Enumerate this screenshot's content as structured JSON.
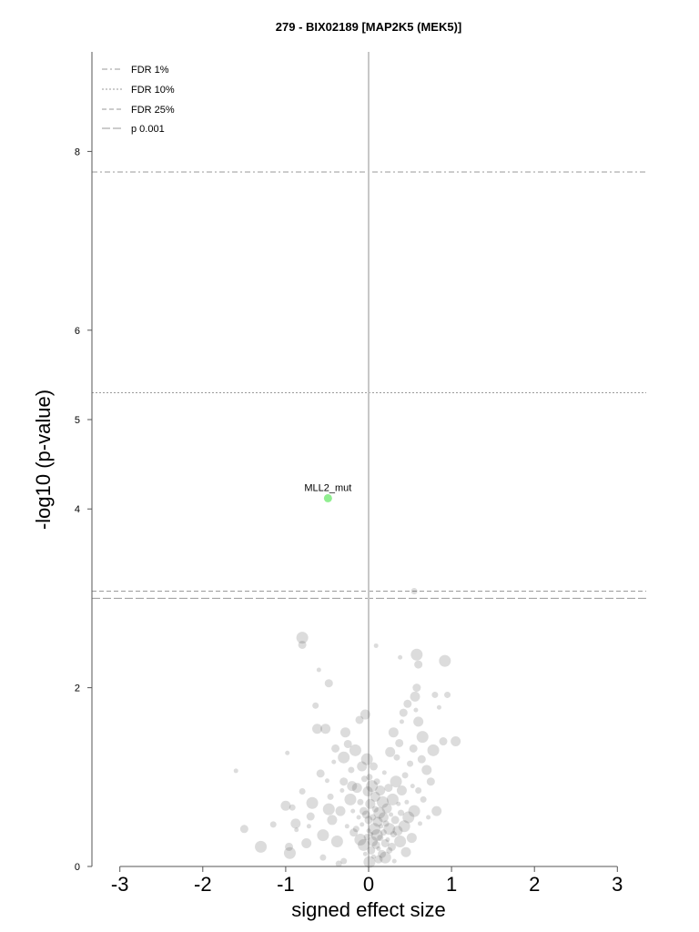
{
  "chart_data": {
    "type": "scatter",
    "title": "279 - BIX02189 [MAP2K5 (MEK5)]",
    "xlabel": "signed effect size",
    "ylabel": "-log10 (p-value)",
    "xlim": [
      -3.3,
      3.3
    ],
    "ylim": [
      0,
      9.1
    ],
    "x_ticks": [
      "-3",
      "-2",
      "-1",
      "0",
      "1",
      "2",
      "3"
    ],
    "y_ticks": [
      "0",
      "2",
      "4",
      "5",
      "6",
      "8"
    ],
    "grid": false,
    "legend_position": "top-left",
    "thresholds": [
      {
        "name": "FDR 1%",
        "y": 7.77,
        "style": "dash-dot"
      },
      {
        "name": "FDR 10%",
        "y": 5.3,
        "style": "dotted"
      },
      {
        "name": "FDR 25%",
        "y": 3.08,
        "style": "dashed"
      },
      {
        "name": "p 0.001",
        "y": 3.0,
        "style": "long-dashed"
      }
    ],
    "highlighted": [
      {
        "label": "MLL2_mut",
        "x": -0.49,
        "y": 4.12,
        "color": "#90ee90"
      }
    ],
    "background_points": [
      [
        -1.6,
        1.07
      ],
      [
        -1.5,
        0.42
      ],
      [
        -1.3,
        0.22
      ],
      [
        -1.15,
        0.47
      ],
      [
        -1.0,
        0.68
      ],
      [
        -0.98,
        1.27
      ],
      [
        -0.96,
        0.22
      ],
      [
        -0.95,
        0.15
      ],
      [
        -0.92,
        0.66
      ],
      [
        -0.88,
        0.48
      ],
      [
        -0.87,
        0.41
      ],
      [
        -0.8,
        2.48
      ],
      [
        -0.8,
        2.56
      ],
      [
        -0.8,
        0.84
      ],
      [
        -0.75,
        0.26
      ],
      [
        -0.72,
        0.45
      ],
      [
        -0.7,
        0.56
      ],
      [
        -0.68,
        0.71
      ],
      [
        -0.64,
        1.8
      ],
      [
        -0.62,
        1.54
      ],
      [
        -0.6,
        2.2
      ],
      [
        -0.58,
        1.04
      ],
      [
        -0.55,
        0.35
      ],
      [
        -0.55,
        0.1
      ],
      [
        -0.52,
        1.54
      ],
      [
        -0.5,
        0.96
      ],
      [
        -0.48,
        2.05
      ],
      [
        -0.48,
        0.64
      ],
      [
        -0.46,
        0.78
      ],
      [
        -0.44,
        0.52
      ],
      [
        -0.42,
        1.17
      ],
      [
        -0.4,
        1.32
      ],
      [
        -0.38,
        0.28
      ],
      [
        -0.36,
        0.03
      ],
      [
        -0.34,
        0.62
      ],
      [
        -0.32,
        0.85
      ],
      [
        -0.3,
        0.95
      ],
      [
        -0.3,
        1.22
      ],
      [
        -0.3,
        0.06
      ],
      [
        -0.28,
        1.5
      ],
      [
        -0.26,
        0.45
      ],
      [
        -0.25,
        1.37
      ],
      [
        -0.22,
        0.75
      ],
      [
        -0.21,
        1.08
      ],
      [
        -0.2,
        0.9
      ],
      [
        -0.19,
        0.62
      ],
      [
        -0.18,
        0.38
      ],
      [
        -0.16,
        1.3
      ],
      [
        -0.15,
        0.42
      ],
      [
        -0.14,
        0.88
      ],
      [
        -0.12,
        0.55
      ],
      [
        -0.11,
        1.64
      ],
      [
        -0.1,
        0.3
      ],
      [
        -0.1,
        0.72
      ],
      [
        -0.08,
        1.12
      ],
      [
        -0.08,
        0.47
      ],
      [
        -0.06,
        0.62
      ],
      [
        -0.06,
        0.24
      ],
      [
        -0.05,
        0.98
      ],
      [
        -0.04,
        1.7
      ],
      [
        -0.04,
        0.14
      ],
      [
        -0.03,
        0.58
      ],
      [
        -0.02,
        1.2
      ],
      [
        -0.02,
        0.33
      ],
      [
        -0.01,
        0.84
      ],
      [
        0.0,
        0.4
      ],
      [
        0.0,
        0.52
      ],
      [
        0.01,
        0.05
      ],
      [
        0.01,
        1.0
      ],
      [
        0.02,
        0.7
      ],
      [
        0.03,
        0.36
      ],
      [
        0.03,
        0.18
      ],
      [
        0.04,
        0.9
      ],
      [
        0.05,
        0.55
      ],
      [
        0.05,
        0.28
      ],
      [
        0.06,
        0.11
      ],
      [
        0.06,
        1.12
      ],
      [
        0.07,
        0.42
      ],
      [
        0.08,
        0.64
      ],
      [
        0.08,
        0.78
      ],
      [
        0.09,
        2.47
      ],
      [
        0.09,
        0.24
      ],
      [
        0.1,
        0.35
      ],
      [
        0.1,
        0.95
      ],
      [
        0.11,
        0.5
      ],
      [
        0.12,
        0.2
      ],
      [
        0.12,
        0.08
      ],
      [
        0.13,
        0.6
      ],
      [
        0.14,
        0.32
      ],
      [
        0.14,
        0.85
      ],
      [
        0.15,
        0.45
      ],
      [
        0.16,
        0.14
      ],
      [
        0.17,
        0.72
      ],
      [
        0.18,
        0.38
      ],
      [
        0.18,
        0.55
      ],
      [
        0.19,
        1.05
      ],
      [
        0.2,
        0.26
      ],
      [
        0.2,
        0.1
      ],
      [
        0.21,
        0.48
      ],
      [
        0.22,
        0.65
      ],
      [
        0.23,
        0.3
      ],
      [
        0.24,
        0.88
      ],
      [
        0.25,
        0.42
      ],
      [
        0.25,
        0.18
      ],
      [
        0.26,
        1.28
      ],
      [
        0.27,
        0.58
      ],
      [
        0.28,
        0.22
      ],
      [
        0.29,
        0.75
      ],
      [
        0.3,
        0.36
      ],
      [
        0.3,
        1.5
      ],
      [
        0.31,
        0.06
      ],
      [
        0.32,
        0.52
      ],
      [
        0.33,
        0.95
      ],
      [
        0.34,
        1.22
      ],
      [
        0.35,
        0.4
      ],
      [
        0.36,
        0.7
      ],
      [
        0.37,
        1.38
      ],
      [
        0.38,
        0.28
      ],
      [
        0.39,
        0.6
      ],
      [
        0.4,
        0.85
      ],
      [
        0.4,
        1.62
      ],
      [
        0.42,
        1.72
      ],
      [
        0.43,
        0.45
      ],
      [
        0.44,
        1.02
      ],
      [
        0.45,
        0.16
      ],
      [
        0.46,
        0.72
      ],
      [
        0.47,
        1.82
      ],
      [
        0.48,
        0.55
      ],
      [
        0.5,
        1.15
      ],
      [
        0.52,
        0.32
      ],
      [
        0.53,
        0.9
      ],
      [
        0.54,
        1.32
      ],
      [
        0.55,
        0.62
      ],
      [
        0.55,
        3.08
      ],
      [
        0.56,
        1.9
      ],
      [
        0.57,
        1.75
      ],
      [
        0.58,
        2.0
      ],
      [
        0.58,
        2.37
      ],
      [
        0.6,
        0.85
      ],
      [
        0.6,
        1.62
      ],
      [
        0.62,
        0.48
      ],
      [
        0.64,
        1.2
      ],
      [
        0.65,
        1.45
      ],
      [
        0.66,
        0.75
      ],
      [
        0.7,
        1.08
      ],
      [
        0.72,
        0.55
      ],
      [
        0.75,
        0.95
      ],
      [
        0.78,
        1.3
      ],
      [
        0.8,
        1.92
      ],
      [
        0.82,
        0.62
      ],
      [
        0.85,
        1.78
      ],
      [
        0.9,
        1.4
      ],
      [
        0.92,
        2.3
      ],
      [
        0.95,
        1.92
      ],
      [
        1.05,
        1.4
      ],
      [
        0.38,
        2.34
      ],
      [
        0.6,
        2.26
      ]
    ]
  }
}
